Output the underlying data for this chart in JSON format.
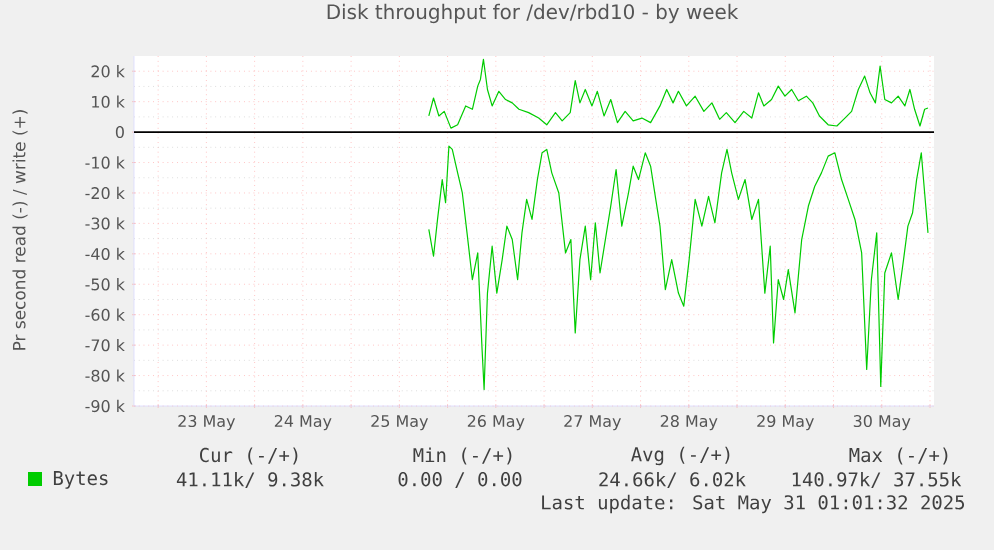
{
  "chart_data": {
    "type": "line",
    "title": "Disk throughput for /dev/rbd10 - by week",
    "ylabel": "Pr second read (-) / write (+)",
    "xlim": [
      "2025-05-22T18:00",
      "2025-05-31T01:00"
    ],
    "xticks": [
      {
        "value": "2025-05-23T00:00",
        "label": null
      },
      {
        "value": "2025-05-23T12:00",
        "label": "23 May"
      },
      {
        "value": "2025-05-24T00:00",
        "label": null
      },
      {
        "value": "2025-05-24T12:00",
        "label": "24 May"
      },
      {
        "value": "2025-05-25T00:00",
        "label": null
      },
      {
        "value": "2025-05-25T12:00",
        "label": "25 May"
      },
      {
        "value": "2025-05-26T00:00",
        "label": null
      },
      {
        "value": "2025-05-26T12:00",
        "label": "26 May"
      },
      {
        "value": "2025-05-27T00:00",
        "label": null
      },
      {
        "value": "2025-05-27T12:00",
        "label": "27 May"
      },
      {
        "value": "2025-05-28T00:00",
        "label": null
      },
      {
        "value": "2025-05-28T12:00",
        "label": "28 May"
      },
      {
        "value": "2025-05-29T00:00",
        "label": null
      },
      {
        "value": "2025-05-29T12:00",
        "label": "29 May"
      },
      {
        "value": "2025-05-30T00:00",
        "label": null
      },
      {
        "value": "2025-05-30T12:00",
        "label": "30 May"
      },
      {
        "value": "2025-05-31T00:00",
        "label": null
      }
    ],
    "ylim": [
      -90000,
      25000
    ],
    "yticks": [
      {
        "value": -90000,
        "label": "-90 k"
      },
      {
        "value": -80000,
        "label": "-80 k"
      },
      {
        "value": -70000,
        "label": "-70 k"
      },
      {
        "value": -60000,
        "label": "-60 k"
      },
      {
        "value": -50000,
        "label": "-50 k"
      },
      {
        "value": -40000,
        "label": "-40 k"
      },
      {
        "value": -30000,
        "label": "-30 k"
      },
      {
        "value": -20000,
        "label": "-20 k"
      },
      {
        "value": -10000,
        "label": "-10 k"
      },
      0,
      {
        "value": 10000,
        "label": "10 k"
      },
      {
        "value": 20000,
        "label": "20 k"
      }
    ],
    "grid": true,
    "legend": "bottom",
    "marker": "none",
    "line_style": "solid",
    "ref_lines": [
      {
        "axis": "y",
        "value": 0,
        "color": "#000000"
      }
    ],
    "series": [
      {
        "name": "Bytes",
        "color": "#00cc00",
        "x": [
          "2025-05-25T19:20",
          "2025-05-25T20:30",
          "2025-05-25T21:30",
          "2025-05-25T22:40",
          "2025-05-25T23:30",
          "2025-05-26T00:20",
          "2025-05-26T01:10",
          "2025-05-26T02:30",
          "2025-05-26T03:40",
          "2025-05-26T04:50",
          "2025-05-26T06:10",
          "2025-05-26T07:30",
          "2025-05-26T08:35",
          "2025-05-26T09:05",
          "2025-05-26T09:55",
          "2025-05-26T11:05",
          "2025-05-26T12:15",
          "2025-05-26T13:35",
          "2025-05-26T14:45",
          "2025-05-26T16:05",
          "2025-05-26T17:25",
          "2025-05-26T18:30",
          "2025-05-26T19:40",
          "2025-05-26T21:00",
          "2025-05-26T22:20",
          "2025-05-26T23:30",
          "2025-05-27T00:40",
          "2025-05-27T01:55",
          "2025-05-27T03:40",
          "2025-05-27T05:20",
          "2025-05-27T06:40",
          "2025-05-27T07:45",
          "2025-05-27T08:55",
          "2025-05-27T10:15",
          "2025-05-27T11:35",
          "2025-05-27T12:45",
          "2025-05-27T13:55",
          "2025-05-27T15:15",
          "2025-05-27T16:35",
          "2025-05-27T17:55",
          "2025-05-27T19:20",
          "2025-05-27T21:00",
          "2025-05-27T22:10",
          "2025-05-27T23:30",
          "2025-05-28T01:10",
          "2025-05-28T02:30",
          "2025-05-28T03:40",
          "2025-05-28T04:50",
          "2025-05-28T06:10",
          "2025-05-28T07:45",
          "2025-05-28T09:25",
          "2025-05-28T10:45",
          "2025-05-28T12:05",
          "2025-05-28T13:35",
          "2025-05-28T15:15",
          "2025-05-28T16:55",
          "2025-05-28T18:30",
          "2025-05-28T20:10",
          "2025-05-28T21:30",
          "2025-05-28T22:40",
          "2025-05-29T00:20",
          "2025-05-29T02:00",
          "2025-05-29T03:40",
          "2025-05-29T05:20",
          "2025-05-29T06:55",
          "2025-05-29T08:15",
          "2025-05-29T09:05",
          "2025-05-29T10:15",
          "2025-05-29T11:35",
          "2025-05-29T12:45",
          "2025-05-29T14:25",
          "2025-05-29T16:05",
          "2025-05-29T17:45",
          "2025-05-29T19:20",
          "2025-05-29T21:00",
          "2025-05-29T22:40",
          "2025-05-30T00:20",
          "2025-05-30T02:00",
          "2025-05-30T03:40",
          "2025-05-30T05:20",
          "2025-05-30T07:00",
          "2025-05-30T08:15",
          "2025-05-30T09:25",
          "2025-05-30T10:45",
          "2025-05-30T11:45",
          "2025-05-30T12:45",
          "2025-05-30T14:25",
          "2025-05-30T16:05",
          "2025-05-30T17:25",
          "2025-05-30T18:30",
          "2025-05-30T19:40",
          "2025-05-30T20:40",
          "2025-05-30T21:50",
          "2025-05-30T22:40",
          "2025-05-30T23:30"
        ],
        "values": [
          -32000,
          -40800,
          -28700,
          -15600,
          -23200,
          -4600,
          -5700,
          -13400,
          -20000,
          -33100,
          -48500,
          -39700,
          -71500,
          -84600,
          -52900,
          -37500,
          -52900,
          -41900,
          -30900,
          -35300,
          -48500,
          -33100,
          -22100,
          -28700,
          -15600,
          -6800,
          -5700,
          -13400,
          -20000,
          -39700,
          -35300,
          -66000,
          -41900,
          -30900,
          -48500,
          -29800,
          -46300,
          -35300,
          -24300,
          -12300,
          -30900,
          -20000,
          -11200,
          -15600,
          -6800,
          -11200,
          -21100,
          -30900,
          -51800,
          -41900,
          -52900,
          -57200,
          -41900,
          -22100,
          -30900,
          -21100,
          -29800,
          -13400,
          -5700,
          -13400,
          -22100,
          -15600,
          -28700,
          -22100,
          -52900,
          -37500,
          -69300,
          -48500,
          -55000,
          -45200,
          -59400,
          -35300,
          -24300,
          -17800,
          -13400,
          -7900,
          -6800,
          -15600,
          -22100,
          -28700,
          -39700,
          -78000,
          -48500,
          -33100,
          -83600,
          -46300,
          -39700,
          -55000,
          -41900,
          -30900,
          -26500,
          -15600,
          -6800,
          -20000,
          -33100
        ]
      },
      {
        "color": "#00cc00",
        "x": [
          "2025-05-25T19:20",
          "2025-05-25T20:30",
          "2025-05-25T21:50",
          "2025-05-25T23:10",
          "2025-05-26T00:50",
          "2025-05-26T02:30",
          "2025-05-26T04:30",
          "2025-05-26T06:10",
          "2025-05-26T07:30",
          "2025-05-26T08:10",
          "2025-05-26T08:55",
          "2025-05-26T09:55",
          "2025-05-26T11:05",
          "2025-05-26T12:45",
          "2025-05-26T14:25",
          "2025-05-26T16:05",
          "2025-05-26T17:45",
          "2025-05-26T20:10",
          "2025-05-26T22:40",
          "2025-05-27T00:40",
          "2025-05-27T02:50",
          "2025-05-27T04:30",
          "2025-05-27T06:30",
          "2025-05-27T07:45",
          "2025-05-27T08:55",
          "2025-05-27T10:15",
          "2025-05-27T11:55",
          "2025-05-27T13:15",
          "2025-05-27T14:55",
          "2025-05-27T16:35",
          "2025-05-27T18:15",
          "2025-05-27T20:10",
          "2025-05-27T22:10",
          "2025-05-28T00:20",
          "2025-05-28T02:30",
          "2025-05-28T04:50",
          "2025-05-28T06:30",
          "2025-05-28T08:05",
          "2025-05-28T09:25",
          "2025-05-28T11:25",
          "2025-05-28T13:35",
          "2025-05-28T15:45",
          "2025-05-28T17:45",
          "2025-05-28T19:40",
          "2025-05-28T21:20",
          "2025-05-28T23:30",
          "2025-05-29T01:40",
          "2025-05-29T03:40",
          "2025-05-29T05:20",
          "2025-05-29T06:40",
          "2025-05-29T08:35",
          "2025-05-29T10:15",
          "2025-05-29T11:55",
          "2025-05-29T13:35",
          "2025-05-29T15:15",
          "2025-05-29T17:15",
          "2025-05-29T18:50",
          "2025-05-29T20:30",
          "2025-05-29T22:40",
          "2025-05-30T00:50",
          "2025-05-30T02:50",
          "2025-05-30T04:30",
          "2025-05-30T06:10",
          "2025-05-30T07:45",
          "2025-05-30T09:05",
          "2025-05-30T10:25",
          "2025-05-30T11:35",
          "2025-05-30T12:45",
          "2025-05-30T14:25",
          "2025-05-30T16:05",
          "2025-05-30T17:45",
          "2025-05-30T19:00",
          "2025-05-30T20:10",
          "2025-05-30T21:30",
          "2025-05-30T22:40",
          "2025-05-30T23:30"
        ],
        "values": [
          5300,
          11200,
          5300,
          6800,
          1300,
          2400,
          8600,
          7500,
          15100,
          17300,
          23900,
          14000,
          8600,
          13400,
          10700,
          9600,
          7500,
          6400,
          4600,
          2400,
          6400,
          3700,
          6400,
          16900,
          9600,
          14000,
          8600,
          13400,
          5300,
          10700,
          3100,
          6800,
          3700,
          4600,
          3100,
          8600,
          14000,
          9600,
          13400,
          8600,
          11800,
          6800,
          9600,
          4200,
          6400,
          3100,
          6800,
          4600,
          12900,
          8600,
          10700,
          15100,
          11800,
          14000,
          10300,
          11800,
          9600,
          5300,
          2400,
          2000,
          4600,
          6800,
          14000,
          18400,
          12900,
          9600,
          21700,
          10700,
          9600,
          11800,
          8600,
          14000,
          7500,
          2000,
          7500,
          7900
        ]
      }
    ],
    "annotations": [
      "Cur (-/+)",
      "Min (-/+)",
      "Avg (-/+)",
      "Max (-/+)",
      "41.11k/ 9.38k",
      "0.00 / 0.00",
      "24.66k/ 6.02k",
      "140.97k/ 37.55k",
      "Last update: Sat May 31 01:01:32 2025"
    ]
  }
}
